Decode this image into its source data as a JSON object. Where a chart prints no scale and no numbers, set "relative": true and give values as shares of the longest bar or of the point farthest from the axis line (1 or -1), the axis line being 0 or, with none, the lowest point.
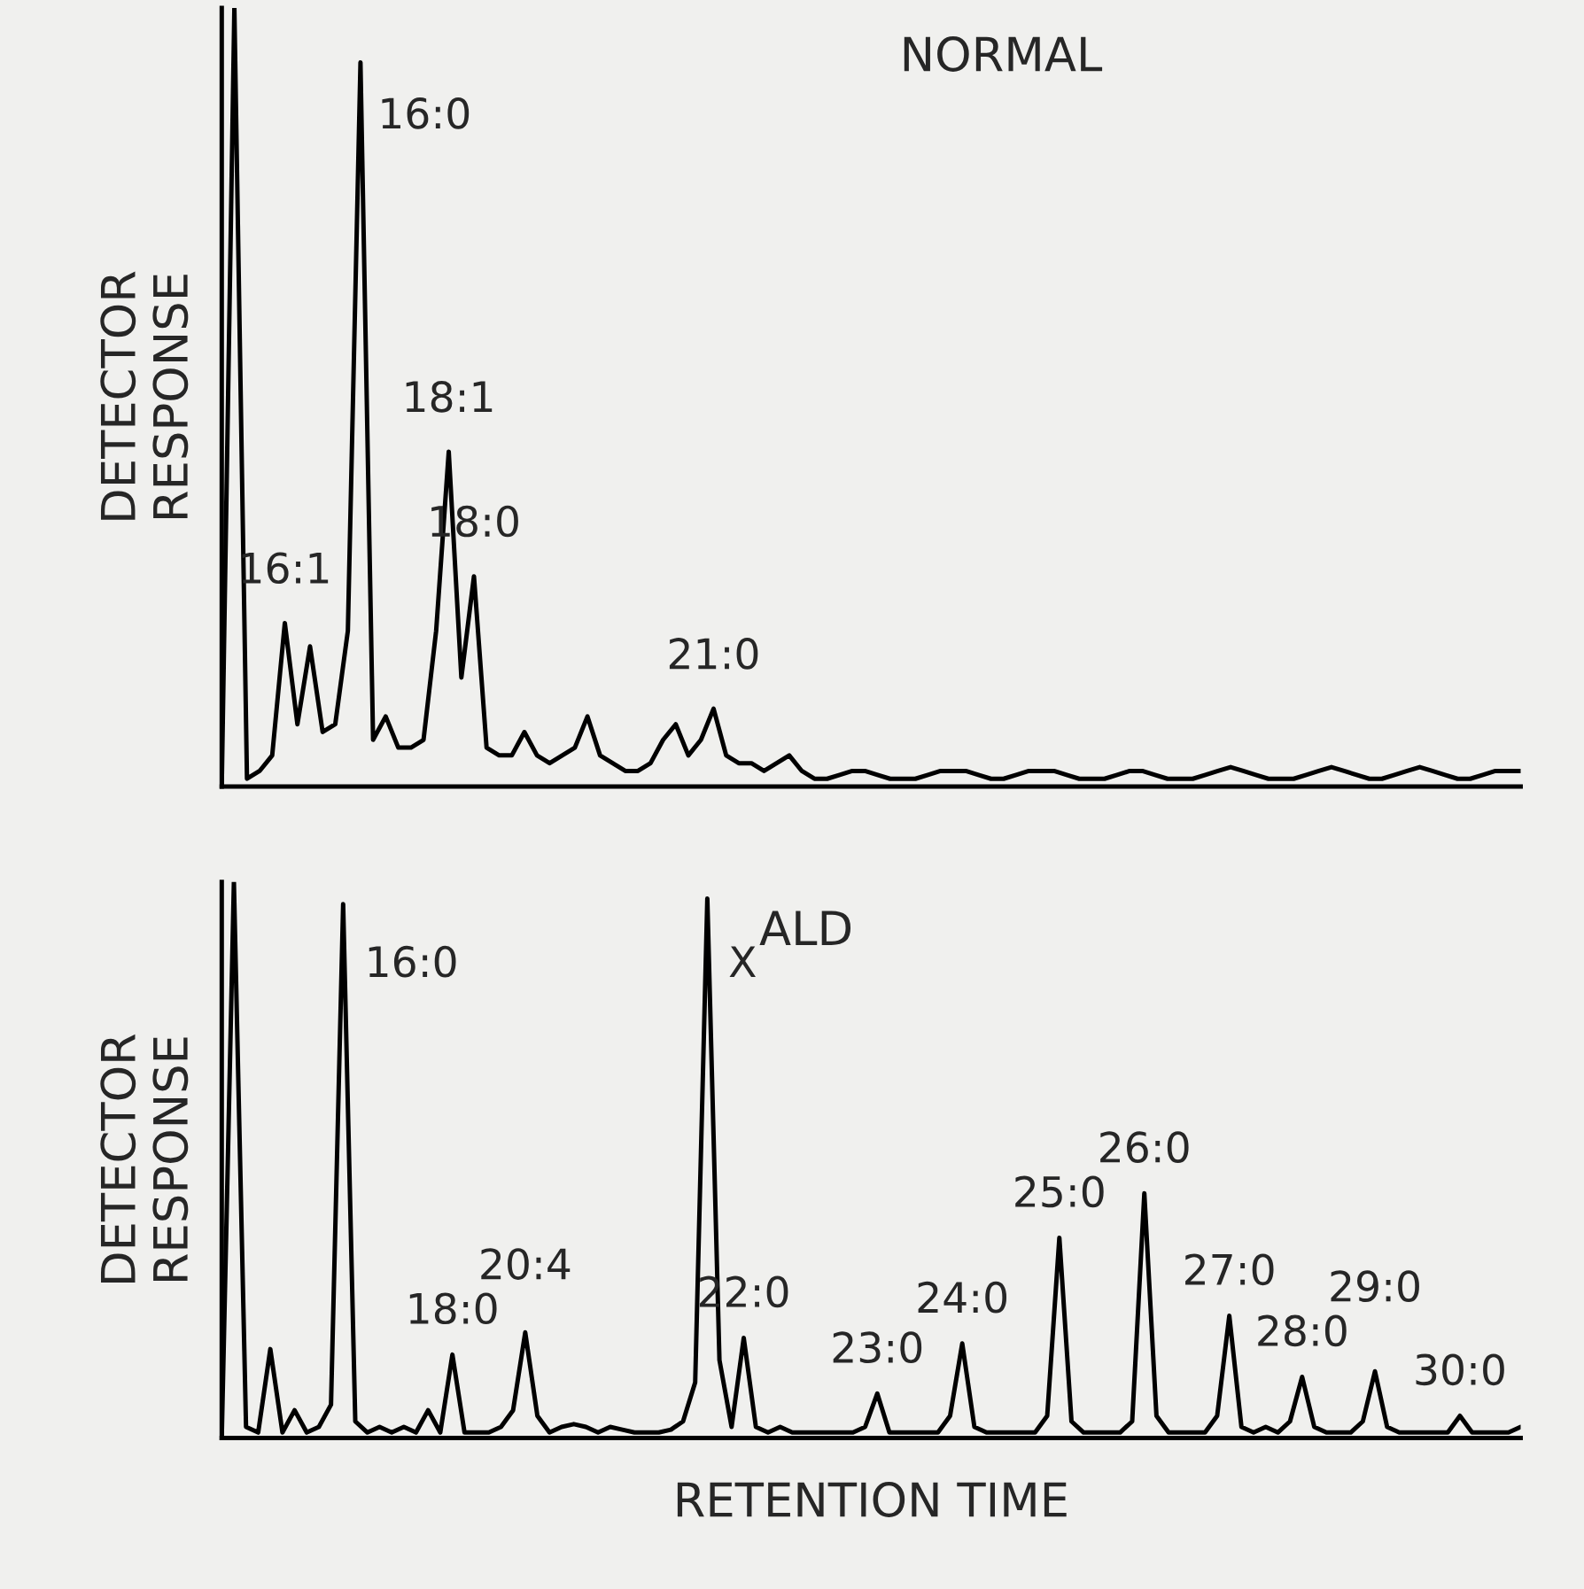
{
  "chart_data": [
    {
      "type": "line",
      "title": "NORMAL",
      "ylabel": "DETECTOR\nRESPONSE",
      "relative": true,
      "categories": [
        null,
        null,
        null,
        null,
        null,
        null,
        null,
        null,
        null,
        null,
        null,
        null,
        null,
        null,
        null,
        null,
        null,
        null,
        null,
        null,
        null,
        null,
        null,
        null,
        null,
        null,
        null,
        null,
        null,
        null,
        null,
        null,
        null,
        null,
        null,
        null,
        null,
        null,
        null,
        null,
        null,
        null,
        null,
        null,
        null,
        null,
        null,
        null,
        null,
        null,
        null,
        null,
        null,
        null,
        null,
        null,
        null,
        null,
        null,
        null,
        null,
        null,
        null,
        null,
        null,
        null,
        null,
        null,
        null,
        null,
        null,
        null,
        null,
        null,
        null,
        null,
        null,
        null,
        null,
        null,
        null,
        null,
        null,
        null,
        null,
        null,
        null,
        null,
        null,
        null,
        null,
        null,
        null,
        null,
        null,
        null,
        null,
        null,
        null,
        null,
        null,
        null,
        null,
        null
      ],
      "series": [
        {
          "color": "#000000",
          "values": [
            0,
            1.0,
            0.01,
            0.02,
            0.04,
            0.21,
            0.08,
            0.18,
            0.07,
            0.08,
            0.2,
            0.93,
            0.06,
            0.09,
            0.05,
            0.05,
            0.06,
            0.2,
            0.43,
            0.14,
            0.27,
            0.05,
            0.04,
            0.04,
            0.07,
            0.04,
            0.03,
            0.04,
            0.05,
            0.09,
            0.04,
            0.03,
            0.02,
            0.02,
            0.03,
            0.06,
            0.08,
            0.04,
            0.06,
            0.1,
            0.04,
            0.03,
            0.03,
            0.02,
            0.03,
            0.04,
            0.02,
            0.01,
            0.01,
            0.015,
            0.02,
            0.02,
            0.015,
            0.01,
            0.01,
            0.01,
            0.015,
            0.02,
            0.02,
            0.02,
            0.015,
            0.01,
            0.01,
            0.015,
            0.02,
            0.02,
            0.02,
            0.015,
            0.01,
            0.01,
            0.01,
            0.015,
            0.02,
            0.02,
            0.015,
            0.01,
            0.01,
            0.01,
            0.015,
            0.02,
            0.025,
            0.02,
            0.015,
            0.01,
            0.01,
            0.01,
            0.015,
            0.02,
            0.025,
            0.02,
            0.015,
            0.01,
            0.01,
            0.015,
            0.02,
            0.025,
            0.02,
            0.015,
            0.01,
            0.01,
            0.015,
            0.02,
            0.02,
            0.02
          ]
        }
      ],
      "annotations": [
        {
          "text": "16:1",
          "y": 0.21
        },
        "16:0",
        {
          "text": "18:1",
          "y": 0.43
        },
        {
          "text": "18:0",
          "y": 0.27
        },
        {
          "text": "21:0",
          "y": 0.1
        }
      ]
    },
    {
      "type": "line",
      "title": "ALD",
      "ylabel": "DETECTOR\nRESPONSE",
      "xlabel": "RETENTION TIME",
      "relative": true,
      "categories": [
        null,
        null,
        null,
        null,
        null,
        null,
        null,
        null,
        null,
        null,
        null,
        null,
        null,
        null,
        null,
        null,
        null,
        null,
        null,
        null,
        null,
        null,
        null,
        null,
        null,
        null,
        null,
        null,
        null,
        null,
        null,
        null,
        null,
        null,
        null,
        null,
        null,
        null,
        null,
        null,
        null,
        null,
        null,
        null,
        null,
        null,
        null,
        null,
        null,
        null,
        null,
        null,
        null,
        null,
        null,
        null,
        null,
        null,
        null,
        null,
        null,
        null,
        null,
        null,
        null,
        null,
        null,
        null,
        null,
        null,
        null,
        null,
        null,
        null,
        null,
        null,
        null,
        null,
        null,
        null,
        null,
        null,
        null,
        null,
        null,
        null,
        null,
        null,
        null,
        null,
        null,
        null,
        null,
        null,
        null,
        null,
        null,
        null,
        null,
        null,
        null,
        null,
        null,
        null,
        null,
        null,
        null,
        null
      ],
      "series": [
        {
          "color": "#000000",
          "values": [
            0.0,
            1.0,
            0.02,
            0.01,
            0.16,
            0.01,
            0.05,
            0.01,
            0.02,
            0.06,
            0.96,
            0.03,
            0.01,
            0.02,
            0.01,
            0.02,
            0.01,
            0.05,
            0.01,
            0.15,
            0.01,
            0.01,
            0.01,
            0.02,
            0.05,
            0.19,
            0.04,
            0.01,
            0.02,
            0.025,
            0.02,
            0.01,
            0.02,
            0.015,
            0.01,
            0.01,
            0.01,
            0.015,
            0.03,
            0.1,
            0.97,
            0.14,
            0.02,
            0.18,
            0.02,
            0.01,
            0.02,
            0.01,
            0.01,
            0.01,
            0.01,
            0.01,
            0.01,
            0.02,
            0.08,
            0.01,
            0.01,
            0.01,
            0.01,
            0.01,
            0.04,
            0.17,
            0.02,
            0.01,
            0.01,
            0.01,
            0.01,
            0.01,
            0.04,
            0.36,
            0.03,
            0.01,
            0.01,
            0.01,
            0.01,
            0.03,
            0.44,
            0.04,
            0.01,
            0.01,
            0.01,
            0.01,
            0.04,
            0.22,
            0.02,
            0.01,
            0.02,
            0.01,
            0.03,
            0.11,
            0.02,
            0.01,
            0.01,
            0.01,
            0.03,
            0.12,
            0.02,
            0.01,
            0.01,
            0.01,
            0.01,
            0.01,
            0.04,
            0.01,
            0.01,
            0.01,
            0.01,
            0.02
          ]
        }
      ],
      "annotations": [
        "16:0",
        "X",
        {
          "text": "18:0",
          "y": 0.15
        },
        {
          "text": "20:4",
          "y": 0.19
        },
        {
          "text": "22:0",
          "y": 0.18
        },
        {
          "text": "23:0",
          "y": 0.08
        },
        {
          "text": "24:0",
          "y": 0.17
        },
        {
          "text": "25:0",
          "y": 0.36
        },
        {
          "text": "26:0",
          "y": 0.44
        },
        {
          "text": "27:0",
          "y": 0.22
        },
        {
          "text": "28:0",
          "y": 0.11
        },
        {
          "text": "29:0",
          "y": 0.12
        },
        {
          "text": "30:0",
          "y": 0.04
        }
      ]
    }
  ]
}
